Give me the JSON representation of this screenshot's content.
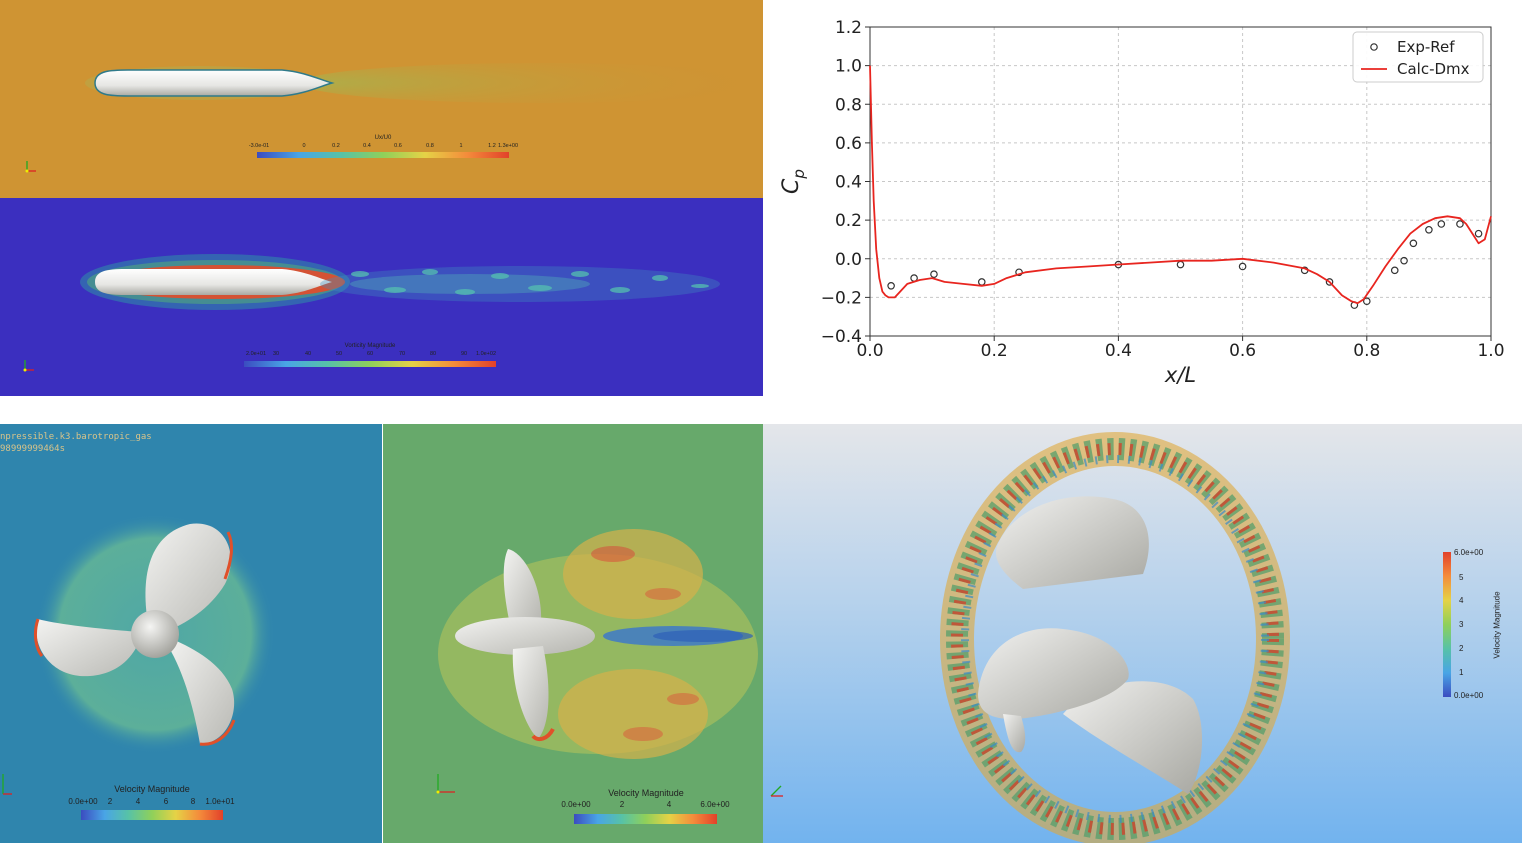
{
  "panels": {
    "hull_velocity": {
      "colorbar_title": "Ux/U0",
      "colorbar_ticks": [
        "-3.0e-01",
        "0",
        "0.2",
        "0.4",
        "0.6",
        "0.8",
        "1",
        "1.2",
        "1.3e+00"
      ]
    },
    "hull_vorticity": {
      "colorbar_title": "Vorticity Magnitude",
      "colorbar_ticks": [
        "2.0e+01",
        "30",
        "40",
        "50",
        "60",
        "70",
        "80",
        "90",
        "1.0e+02"
      ]
    },
    "prop_front": {
      "overlay_line1": "npressible.k3.barotropic_gas",
      "overlay_line2": "98999999464s",
      "colorbar_title": "Velocity Magnitude",
      "colorbar_ticks": [
        "0.0e+00",
        "2",
        "4",
        "6",
        "8",
        "1.0e+01"
      ]
    },
    "prop_side": {
      "colorbar_title": "Velocity Magnitude",
      "colorbar_ticks": [
        "0.0e+00",
        "2",
        "4",
        "6.0e+00"
      ]
    },
    "prop_3d": {
      "colorbar_title": "Velocity Magnitude",
      "colorbar_ticks": [
        "6.0e+00",
        "5",
        "4",
        "3",
        "2",
        "1",
        "0.0e+00"
      ]
    }
  },
  "chart_data": {
    "type": "line",
    "title": "",
    "xlabel": "x/L",
    "ylabel": "C_p",
    "xlim": [
      0.0,
      1.0
    ],
    "ylim": [
      -0.4,
      1.2
    ],
    "xticks": [
      "0.0",
      "0.2",
      "0.4",
      "0.6",
      "0.8",
      "1.0"
    ],
    "yticks": [
      "-0.4",
      "-0.2",
      "0.0",
      "0.2",
      "0.4",
      "0.6",
      "0.8",
      "1.0",
      "1.2"
    ],
    "grid": true,
    "legend_position": "top-right",
    "series": [
      {
        "name": "Exp-Ref",
        "style": "markers",
        "color": "#333333",
        "x": [
          0.034,
          0.071,
          0.103,
          0.18,
          0.24,
          0.4,
          0.5,
          0.6,
          0.7,
          0.74,
          0.78,
          0.8,
          0.845,
          0.86,
          0.875,
          0.9,
          0.92,
          0.95,
          0.98
        ],
        "y": [
          -0.14,
          -0.1,
          -0.08,
          -0.12,
          -0.07,
          -0.03,
          -0.03,
          -0.04,
          -0.06,
          -0.12,
          -0.24,
          -0.22,
          -0.06,
          -0.01,
          0.08,
          0.15,
          0.18,
          0.18,
          0.13
        ]
      },
      {
        "name": "Calc-Dmx",
        "style": "line",
        "color": "#e8251f",
        "x": [
          0.0,
          0.003,
          0.006,
          0.01,
          0.015,
          0.02,
          0.025,
          0.03,
          0.04,
          0.06,
          0.08,
          0.1,
          0.12,
          0.15,
          0.18,
          0.2,
          0.22,
          0.25,
          0.3,
          0.35,
          0.4,
          0.45,
          0.5,
          0.55,
          0.6,
          0.65,
          0.7,
          0.72,
          0.74,
          0.76,
          0.775,
          0.785,
          0.795,
          0.81,
          0.83,
          0.85,
          0.87,
          0.89,
          0.91,
          0.93,
          0.95,
          0.96,
          0.97,
          0.98,
          0.99,
          1.0
        ],
        "y": [
          1.0,
          0.6,
          0.3,
          0.05,
          -0.1,
          -0.17,
          -0.19,
          -0.2,
          -0.2,
          -0.13,
          -0.11,
          -0.1,
          -0.12,
          -0.13,
          -0.14,
          -0.13,
          -0.1,
          -0.07,
          -0.05,
          -0.04,
          -0.03,
          -0.02,
          -0.01,
          -0.01,
          0.0,
          -0.02,
          -0.05,
          -0.08,
          -0.12,
          -0.19,
          -0.22,
          -0.23,
          -0.21,
          -0.14,
          -0.04,
          0.05,
          0.13,
          0.18,
          0.21,
          0.22,
          0.21,
          0.18,
          0.13,
          0.08,
          0.1,
          0.22
        ]
      }
    ]
  }
}
